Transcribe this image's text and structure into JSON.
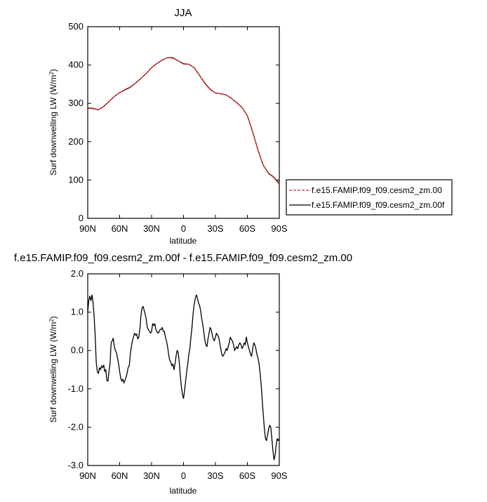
{
  "chart_data": [
    {
      "type": "line",
      "title": "JJA",
      "xlabel": "latitude",
      "ylabel": "Surf downwelling LW",
      "ylabel_units": "(W/m",
      "ylabel_units_sup": "2",
      "ylabel_units_close": ")",
      "xlim": [
        90,
        -90
      ],
      "ylim": [
        0,
        500
      ],
      "xticks": [
        90,
        60,
        30,
        0,
        -30,
        -60,
        -90
      ],
      "xtick_labels": [
        "90N",
        "60N",
        "30N",
        "0",
        "30S",
        "60S",
        "90S"
      ],
      "yticks": [
        0,
        100,
        200,
        300,
        400,
        500
      ],
      "ytick_labels": [
        "0",
        "100",
        "200",
        "300",
        "400",
        "500"
      ],
      "legend_position": "right",
      "series": [
        {
          "name": "f.e15.FAMIP.f09_f09.cesm2_zm.00",
          "color": "#d62728",
          "dash": "dashed",
          "x": [
            90,
            85,
            80,
            75,
            70,
            65,
            60,
            55,
            50,
            45,
            40,
            35,
            30,
            25,
            20,
            15,
            10,
            5,
            0,
            -5,
            -10,
            -15,
            -20,
            -25,
            -30,
            -35,
            -40,
            -45,
            -50,
            -55,
            -60,
            -65,
            -70,
            -75,
            -80,
            -85,
            -90
          ],
          "y": [
            287,
            286,
            283,
            292,
            305,
            318,
            328,
            336,
            343,
            353,
            365,
            378,
            393,
            404,
            413,
            419,
            418,
            411,
            404,
            402,
            393,
            373,
            352,
            336,
            327,
            325,
            322,
            313,
            302,
            289,
            268,
            225,
            178,
            138,
            118,
            108,
            92
          ]
        },
        {
          "name": "f.e15.FAMIP.f09_f09.cesm2_zm.00f",
          "color": "#000000",
          "dash": "solid",
          "x": [
            90,
            85,
            80,
            75,
            70,
            65,
            60,
            55,
            50,
            45,
            40,
            35,
            30,
            25,
            20,
            15,
            10,
            5,
            0,
            -5,
            -10,
            -15,
            -20,
            -25,
            -30,
            -35,
            -40,
            -45,
            -50,
            -55,
            -60,
            -65,
            -70,
            -75,
            -80,
            -85,
            -90
          ],
          "y": [
            288,
            287,
            283,
            292,
            305,
            318,
            328,
            335,
            342,
            353,
            365,
            378,
            393,
            404,
            413,
            419,
            419,
            411,
            403,
            402,
            393,
            373,
            353,
            337,
            327,
            325,
            322,
            313,
            302,
            289,
            268,
            225,
            178,
            138,
            117,
            107,
            90
          ]
        }
      ]
    },
    {
      "type": "line",
      "title": "f.e15.FAMIP.f09_f09.cesm2_zm.00f - f.e15.FAMIP.f09_f09.cesm2_zm.00",
      "xlabel": "latitude",
      "ylabel": "Surf downwelling LW",
      "ylabel_units": "(W/m",
      "ylabel_units_sup": "2",
      "ylabel_units_close": ")",
      "xlim": [
        90,
        -90
      ],
      "ylim": [
        -3.0,
        2.0
      ],
      "xticks": [
        90,
        60,
        30,
        0,
        -30,
        -60,
        -90
      ],
      "xtick_labels": [
        "90N",
        "60N",
        "30N",
        "0",
        "30S",
        "60S",
        "90S"
      ],
      "yticks": [
        -3.0,
        -2.0,
        -1.0,
        0.0,
        1.0,
        2.0
      ],
      "ytick_labels": [
        "-3.0",
        "-2.0",
        "-1.0",
        "0.0",
        "1.0",
        "2.0"
      ],
      "series": [
        {
          "color": "#000000",
          "dash": "solid",
          "x": [
            90,
            89,
            88,
            87,
            86,
            85,
            84,
            83,
            82,
            81,
            80,
            79,
            78,
            77,
            76,
            75,
            74,
            73,
            72,
            71,
            70,
            69,
            68,
            67,
            66,
            65,
            64,
            63,
            62,
            61,
            60,
            59,
            58,
            57,
            56,
            55,
            54,
            53,
            52,
            51,
            50,
            49,
            48,
            47,
            46,
            45,
            44,
            43,
            42,
            41,
            40,
            39,
            38,
            37,
            36,
            35,
            34,
            33,
            32,
            31,
            30,
            29,
            28,
            27,
            26,
            25,
            24,
            23,
            22,
            21,
            20,
            19,
            18,
            17,
            16,
            15,
            14,
            13,
            12,
            11,
            10,
            9,
            8,
            7,
            6,
            5,
            4,
            3,
            2,
            1,
            0,
            -1,
            -2,
            -3,
            -4,
            -5,
            -6,
            -7,
            -8,
            -9,
            -10,
            -11,
            -12,
            -13,
            -14,
            -15,
            -16,
            -17,
            -18,
            -19,
            -20,
            -21,
            -22,
            -23,
            -24,
            -25,
            -26,
            -27,
            -28,
            -29,
            -30,
            -31,
            -32,
            -33,
            -34,
            -35,
            -36,
            -37,
            -38,
            -39,
            -40,
            -41,
            -42,
            -43,
            -44,
            -45,
            -46,
            -47,
            -48,
            -49,
            -50,
            -51,
            -52,
            -53,
            -54,
            -55,
            -56,
            -57,
            -58,
            -59,
            -60,
            -61,
            -62,
            -63,
            -64,
            -65,
            -66,
            -67,
            -68,
            -69,
            -70,
            -71,
            -72,
            -73,
            -74,
            -75,
            -76,
            -77,
            -78,
            -79,
            -80,
            -81,
            -82,
            -83,
            -84,
            -85,
            -86,
            -87,
            -88,
            -89,
            -90
          ],
          "y": [
            1.0,
            1.3,
            1.42,
            1.3,
            1.45,
            1.25,
            0.9,
            0.4,
            -0.3,
            -0.55,
            -0.6,
            -0.45,
            -0.5,
            -0.4,
            -0.45,
            -0.38,
            -0.55,
            -0.5,
            -0.78,
            -0.8,
            -0.55,
            -0.35,
            0.2,
            0.25,
            0.32,
            0.1,
            0.0,
            -0.05,
            -0.2,
            -0.35,
            -0.55,
            -0.72,
            -0.8,
            -0.75,
            -0.85,
            -0.78,
            -0.7,
            -0.6,
            -0.45,
            -0.4,
            -0.1,
            0.1,
            0.25,
            0.35,
            0.45,
            0.4,
            0.43,
            0.3,
            0.35,
            0.55,
            0.9,
            1.1,
            1.15,
            1.05,
            0.95,
            0.8,
            0.6,
            0.55,
            0.5,
            0.45,
            0.5,
            0.7,
            0.65,
            0.7,
            0.55,
            0.5,
            0.45,
            0.48,
            0.55,
            0.55,
            0.6,
            0.5,
            0.5,
            0.35,
            0.25,
            0.1,
            -0.1,
            -0.25,
            -0.3,
            -0.4,
            -0.35,
            -0.5,
            -0.35,
            -0.15,
            0.0,
            -0.05,
            -0.3,
            -0.65,
            -0.95,
            -1.15,
            -1.25,
            -1.05,
            -0.8,
            -0.55,
            -0.35,
            -0.1,
            0.05,
            0.35,
            0.6,
            0.95,
            1.2,
            1.35,
            1.45,
            1.38,
            1.25,
            1.18,
            1.05,
            0.85,
            0.7,
            0.5,
            0.28,
            0.15,
            0.1,
            0.3,
            0.45,
            0.6,
            0.55,
            0.4,
            0.3,
            0.25,
            0.35,
            0.45,
            0.4,
            0.35,
            0.2,
            0.05,
            -0.1,
            -0.15,
            -0.1,
            -0.05,
            0.05,
            0.0,
            0.1,
            0.2,
            0.35,
            0.28,
            0.25,
            0.15,
            0.0,
            0.05,
            0.1,
            0.05,
            0.15,
            0.2,
            0.15,
            0.05,
            0.1,
            0.2,
            0.15,
            0.35,
            0.2,
            0.1,
            0.0,
            -0.1,
            -0.15,
            0.05,
            0.2,
            0.15,
            0.05,
            -0.1,
            -0.2,
            -0.35,
            -0.6,
            -0.9,
            -1.3,
            -1.7,
            -2.05,
            -2.3,
            -2.35,
            -2.2,
            -2.05,
            -1.95,
            -2.0,
            -2.3,
            -2.6,
            -2.85,
            -2.75,
            -2.5,
            -2.3,
            -2.35,
            -2.3
          ]
        }
      ]
    }
  ]
}
